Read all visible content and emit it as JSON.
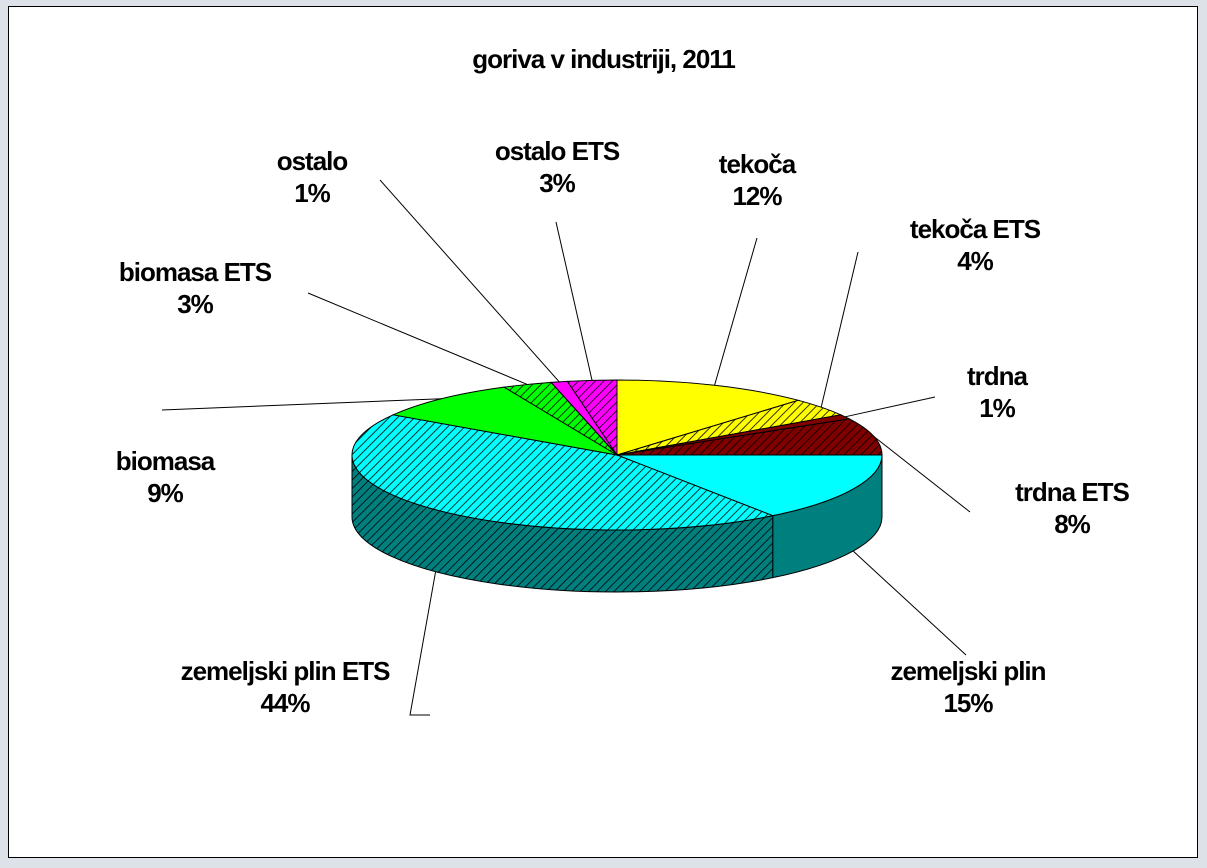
{
  "chart_data": {
    "type": "pie",
    "title": "goriva v industriji, 2011",
    "categories": [
      "tekoča",
      "tekoča ETS",
      "trdna",
      "trdna ETS",
      "zemeljski plin",
      "zemeljski plin ETS",
      "biomasa",
      "biomasa ETS",
      "ostalo",
      "ostalo ETS"
    ],
    "values": [
      12,
      4,
      1,
      8,
      15,
      44,
      9,
      3,
      1,
      3
    ],
    "value_labels": [
      "12%",
      "4%",
      "1%",
      "8%",
      "15%",
      "44%",
      "9%",
      "3%",
      "1%",
      "3%"
    ],
    "colors": [
      "#ffff00",
      "#ffff00",
      "#800000",
      "#800000",
      "#00ffff",
      "#00ffff",
      "#00ff00",
      "#00ff00",
      "#ff00ff",
      "#ff00ff"
    ],
    "hatched": [
      false,
      true,
      false,
      true,
      false,
      true,
      false,
      true,
      false,
      true
    ]
  }
}
